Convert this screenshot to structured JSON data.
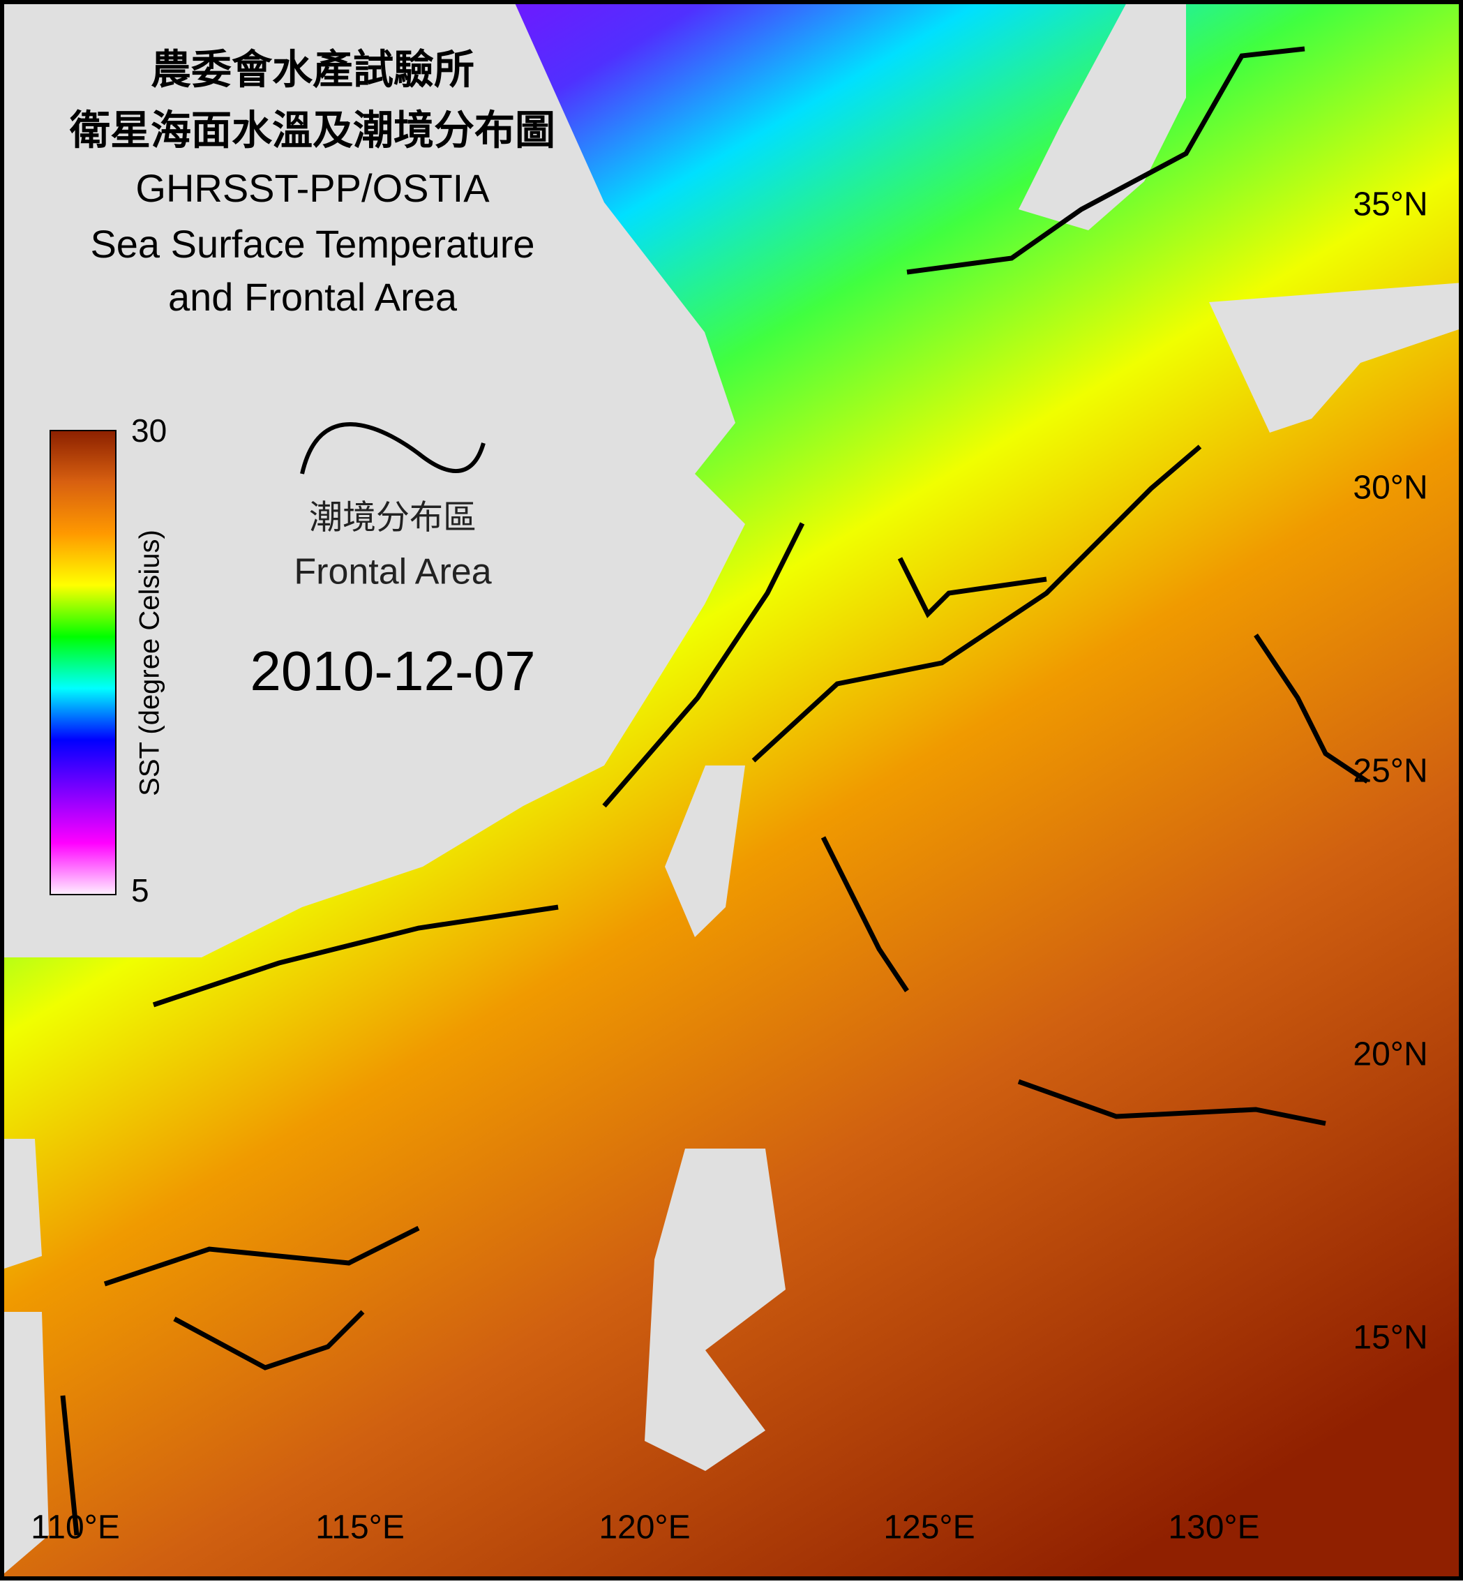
{
  "header": {
    "lines": [
      "農委會水產試驗所",
      "衛星海面水溫及潮境分布圖",
      "GHRSST-PP/OSTIA",
      "Sea Surface Temperature",
      "and Frontal Area"
    ]
  },
  "colorbar": {
    "label": "SST (degree Celsius)",
    "max": 30,
    "min": 5,
    "colors": [
      "#fff0ff",
      "#ff00ff",
      "#8000ff",
      "#0000ff",
      "#00ffff",
      "#00ff00",
      "#ffff00",
      "#ff9900",
      "#d86010",
      "#8b2000"
    ]
  },
  "legend": {
    "lines": [
      "潮境分布區",
      "Frontal Area"
    ]
  },
  "date": "2010-12-07",
  "map": {
    "lat_labels": [
      "35°N",
      "30°N",
      "25°N",
      "20°N",
      "15°N"
    ],
    "lon_labels": [
      "110°E",
      "115°E",
      "120°E",
      "125°E",
      "130°E"
    ]
  }
}
